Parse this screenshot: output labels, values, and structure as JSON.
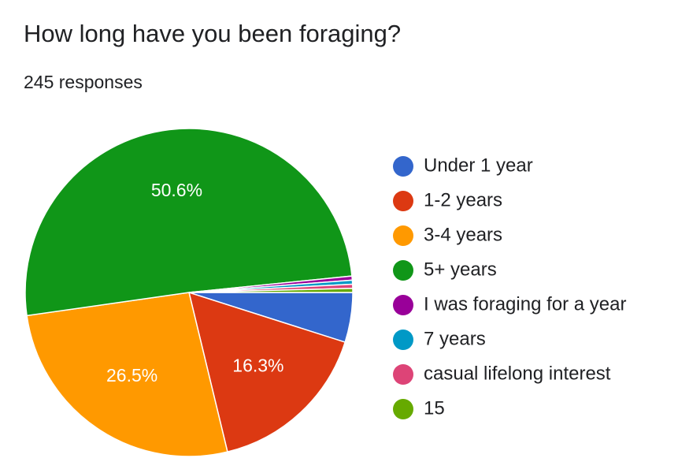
{
  "chart_data": {
    "type": "pie",
    "title": "How long have you been foraging?",
    "subtitle": "245 responses",
    "categories": [
      "Under 1 year",
      "1-2 years",
      "3-4 years",
      "5+ years",
      "I was foraging for a year",
      "7 years",
      "casual lifelong interest",
      "15"
    ],
    "values": [
      4.9,
      16.3,
      26.5,
      50.6,
      0.4,
      0.4,
      0.4,
      0.4
    ],
    "value_labels": [
      null,
      "16.3%",
      "26.5%",
      "50.6%",
      null,
      null,
      null,
      null
    ],
    "colors": [
      "#3366cc",
      "#dc3912",
      "#ff9900",
      "#109618",
      "#990099",
      "#0099c6",
      "#dd4477",
      "#66aa00"
    ],
    "legend": "right"
  }
}
